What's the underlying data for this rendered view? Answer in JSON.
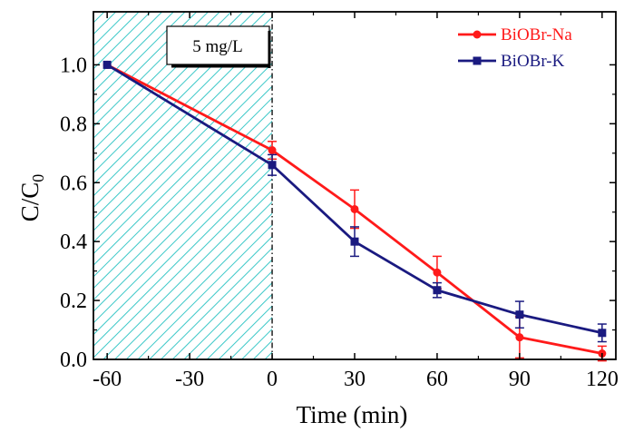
{
  "chart_data": {
    "type": "line",
    "xlabel": "Time (min)",
    "ylabel_main": "C/C",
    "ylabel_sub": "0",
    "annotation": "5 mg/L",
    "xlim": [
      -65,
      125
    ],
    "ylim": [
      0,
      1.18
    ],
    "x_ticks": [
      -60,
      -30,
      0,
      30,
      60,
      90,
      120
    ],
    "y_ticks": [
      0.0,
      0.2,
      0.4,
      0.6,
      0.8,
      1.0
    ],
    "y_tick_labels": [
      "0.0",
      "0.2",
      "0.4",
      "0.6",
      "0.8",
      "1.0"
    ],
    "shaded_region": [
      -65,
      0
    ],
    "legend_position": "top-right",
    "series": [
      {
        "name": "BiOBr-Na",
        "color": "#ff1a1a",
        "marker": "circle",
        "x": [
          -60,
          0,
          30,
          60,
          90,
          120
        ],
        "y": [
          1.0,
          0.71,
          0.51,
          0.295,
          0.075,
          0.02
        ],
        "err": [
          0,
          0.03,
          0.065,
          0.055,
          0.07,
          0.025
        ]
      },
      {
        "name": "BiOBr-K",
        "color": "#1a1a80",
        "marker": "square",
        "x": [
          -60,
          0,
          30,
          60,
          90,
          120
        ],
        "y": [
          1.0,
          0.66,
          0.4,
          0.235,
          0.152,
          0.09
        ],
        "err": [
          0,
          0.035,
          0.05,
          0.025,
          0.045,
          0.03
        ]
      }
    ]
  }
}
